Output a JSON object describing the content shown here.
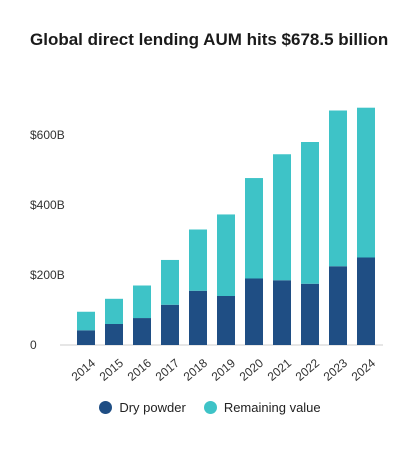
{
  "chart_data": {
    "type": "bar",
    "stacked": true,
    "title": "Global direct lending AUM hits $678.5 billion",
    "categories": [
      "2014",
      "2015",
      "2016",
      "2017",
      "2018",
      "2019",
      "2020",
      "2021",
      "2022",
      "2023",
      "2024"
    ],
    "series": [
      {
        "name": "Dry powder",
        "color": "#1f4e84",
        "values": [
          42,
          60,
          77,
          115,
          155,
          140,
          190,
          185,
          175,
          225,
          250
        ]
      },
      {
        "name": "Remaining value",
        "color": "#3ec3c7",
        "values": [
          53,
          72,
          93,
          128,
          175,
          233,
          287,
          360,
          405,
          445,
          428
        ]
      }
    ],
    "ylim": [
      0,
      700
    ],
    "yticks": [
      {
        "value": 0,
        "label": "0"
      },
      {
        "value": 200,
        "label": "$200B"
      },
      {
        "value": 400,
        "label": "$400B"
      },
      {
        "value": 600,
        "label": "$600B"
      }
    ],
    "grid": false,
    "legend_position": "bottom"
  }
}
